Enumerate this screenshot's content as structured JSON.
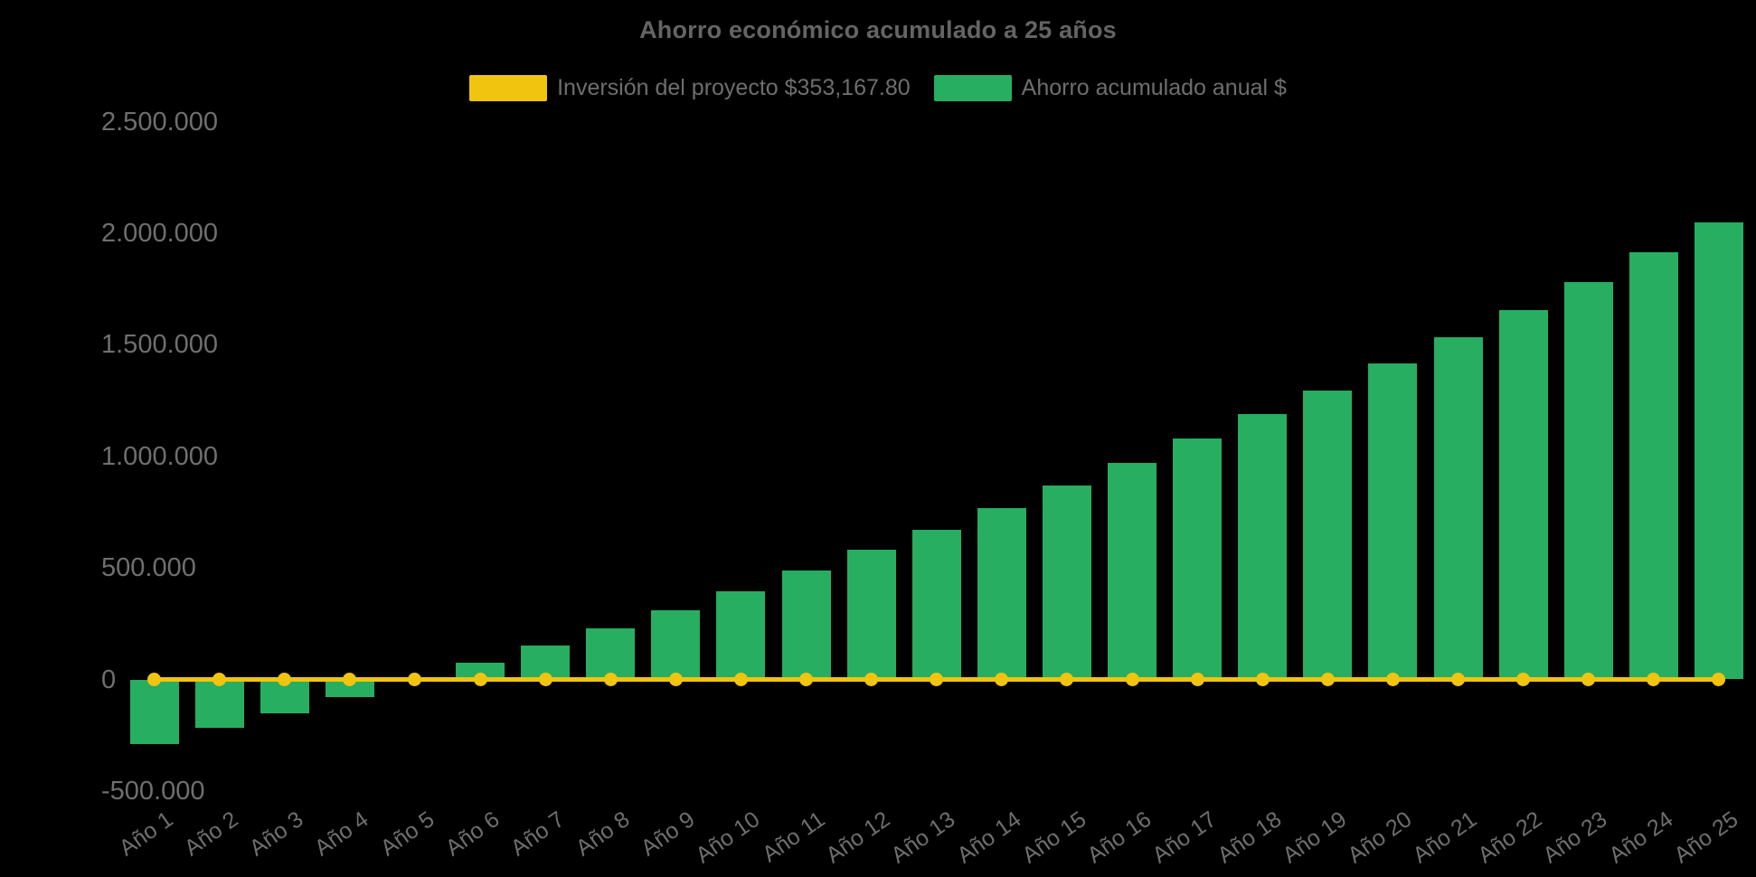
{
  "page": {
    "background": "#000000"
  },
  "title": "Ahorro económico acumulado a 25 años",
  "legend": {
    "position": "top",
    "items": [
      {
        "label": "Inversión del proyecto $353,167.80",
        "color": "#F1C40F"
      },
      {
        "label": "Ahorro acumulado anual $",
        "color": "#27AE60"
      }
    ]
  },
  "chart_data": {
    "type": "bar",
    "title": "Ahorro económico acumulado a 25 años",
    "categories": [
      "Año 1",
      "Año 2",
      "Año 3",
      "Año 4",
      "Año 5",
      "Año 6",
      "Año 7",
      "Año 8",
      "Año 9",
      "Año 10",
      "Año 11",
      "Año 12",
      "Año 13",
      "Año 14",
      "Año 15",
      "Año 16",
      "Año 17",
      "Año 18",
      "Año 19",
      "Año 20",
      "Año 21",
      "Año 22",
      "Año 23",
      "Año 24",
      "Año 25"
    ],
    "series": [
      {
        "name": "Inversión del proyecto $353,167.80",
        "type": "line",
        "color": "#F1C40F",
        "marker": "circle",
        "values": [
          0,
          0,
          0,
          0,
          0,
          0,
          0,
          0,
          0,
          0,
          0,
          0,
          0,
          0,
          0,
          0,
          0,
          0,
          0,
          0,
          0,
          0,
          0,
          0,
          0
        ]
      },
      {
        "name": "Ahorro acumulado anual $",
        "type": "bar",
        "color": "#27AE60",
        "values": [
          -290000,
          -218000,
          -153000,
          -78000,
          0,
          73000,
          150000,
          230000,
          311000,
          397000,
          489000,
          582000,
          671000,
          768000,
          870000,
          971000,
          1081000,
          1190000,
          1296000,
          1417000,
          1535000,
          1657000,
          1782000,
          1916000,
          2050000
        ]
      }
    ],
    "xlabel": "",
    "ylabel": "",
    "ylim": [
      -500000,
      2500000
    ],
    "y_ticks": [
      {
        "value": 2500000,
        "label": "2.500.000"
      },
      {
        "value": 2000000,
        "label": "2.000.000"
      },
      {
        "value": 1500000,
        "label": "1.500.000"
      },
      {
        "value": 1000000,
        "label": "1.000.000"
      },
      {
        "value": 500000,
        "label": "500.000"
      },
      {
        "value": 0,
        "label": "0"
      },
      {
        "value": -500000,
        "label": "-500.000"
      }
    ],
    "grid": false,
    "x_label_rotation_deg": -35,
    "legend_position": "top"
  }
}
